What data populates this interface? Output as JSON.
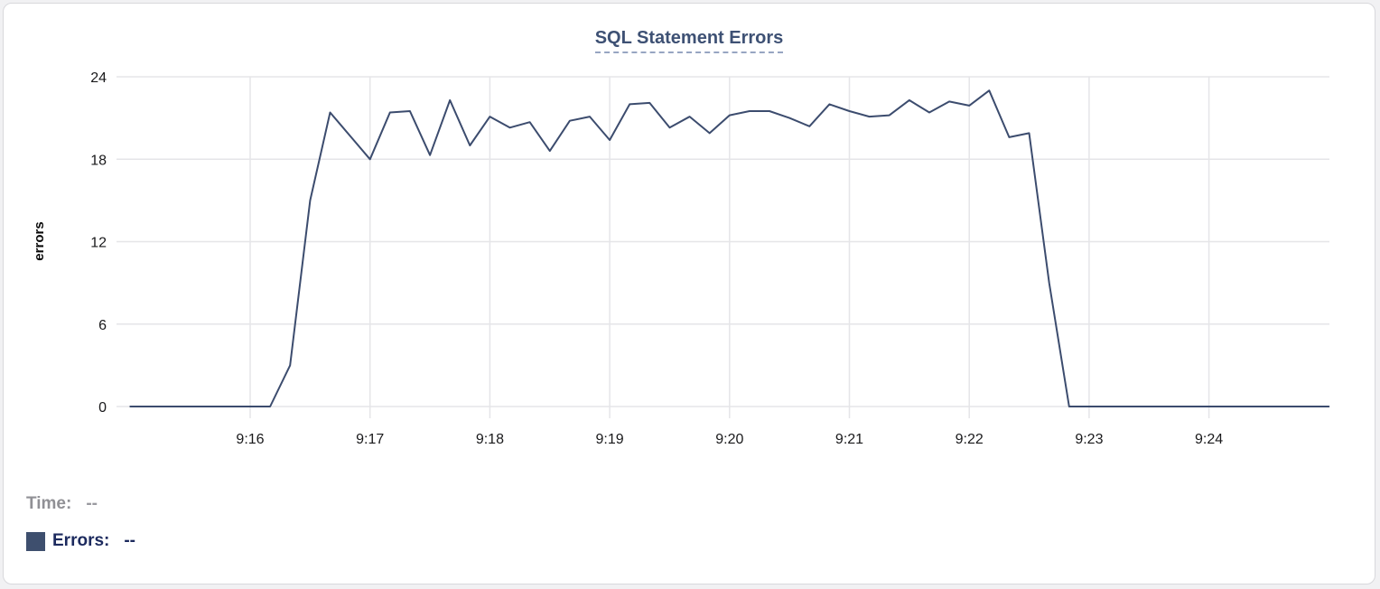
{
  "chart": {
    "title": "SQL Statement Errors",
    "y_axis_label": "errors"
  },
  "legend": {
    "time_label": "Time:",
    "time_value": "--",
    "errors_label": "Errors:",
    "errors_value": "--",
    "swatch_color": "#3e4f6e"
  },
  "colors": {
    "series_line": "#3c4c6e",
    "grid": "#e5e5e8",
    "tick_text": "#19191b",
    "title_text": "#3e5174",
    "title_underline": "#97a5c2",
    "time_readout_text": "#909095",
    "errors_readout_text": "#1c2a5e",
    "card_border": "#d8d8dc",
    "background": "#ffffff"
  },
  "chart_data": {
    "type": "line",
    "title": "SQL Statement Errors",
    "xlabel": "",
    "ylabel": "errors",
    "ylim": [
      0,
      24
    ],
    "y_ticks": [
      0,
      6,
      12,
      18,
      24
    ],
    "x_tick_labels": [
      "9:16",
      "9:17",
      "9:18",
      "9:19",
      "9:20",
      "9:21",
      "9:22",
      "9:23",
      "9:24"
    ],
    "x_start": "9:15:00",
    "x_end": "9:25:00",
    "sample_interval_seconds": 10,
    "grid": true,
    "legend_position": "bottom-left",
    "series": [
      {
        "name": "Errors",
        "color": "#3c4c6e",
        "values": [
          0,
          0,
          0,
          0,
          0,
          0,
          0,
          0,
          3,
          15,
          21.4,
          19.7,
          18,
          21.4,
          21.5,
          18.3,
          22.3,
          19,
          21.1,
          20.3,
          20.7,
          18.6,
          20.8,
          21.1,
          19.4,
          22,
          22.1,
          20.3,
          21.1,
          19.9,
          21.2,
          21.5,
          21.5,
          21,
          20.4,
          22,
          21.5,
          21.1,
          21.2,
          22.3,
          21.4,
          22.2,
          21.9,
          23,
          19.6,
          19.9,
          9,
          0,
          0,
          0,
          0,
          0,
          0,
          0,
          0,
          0,
          0,
          0,
          0,
          0,
          0
        ]
      }
    ]
  }
}
